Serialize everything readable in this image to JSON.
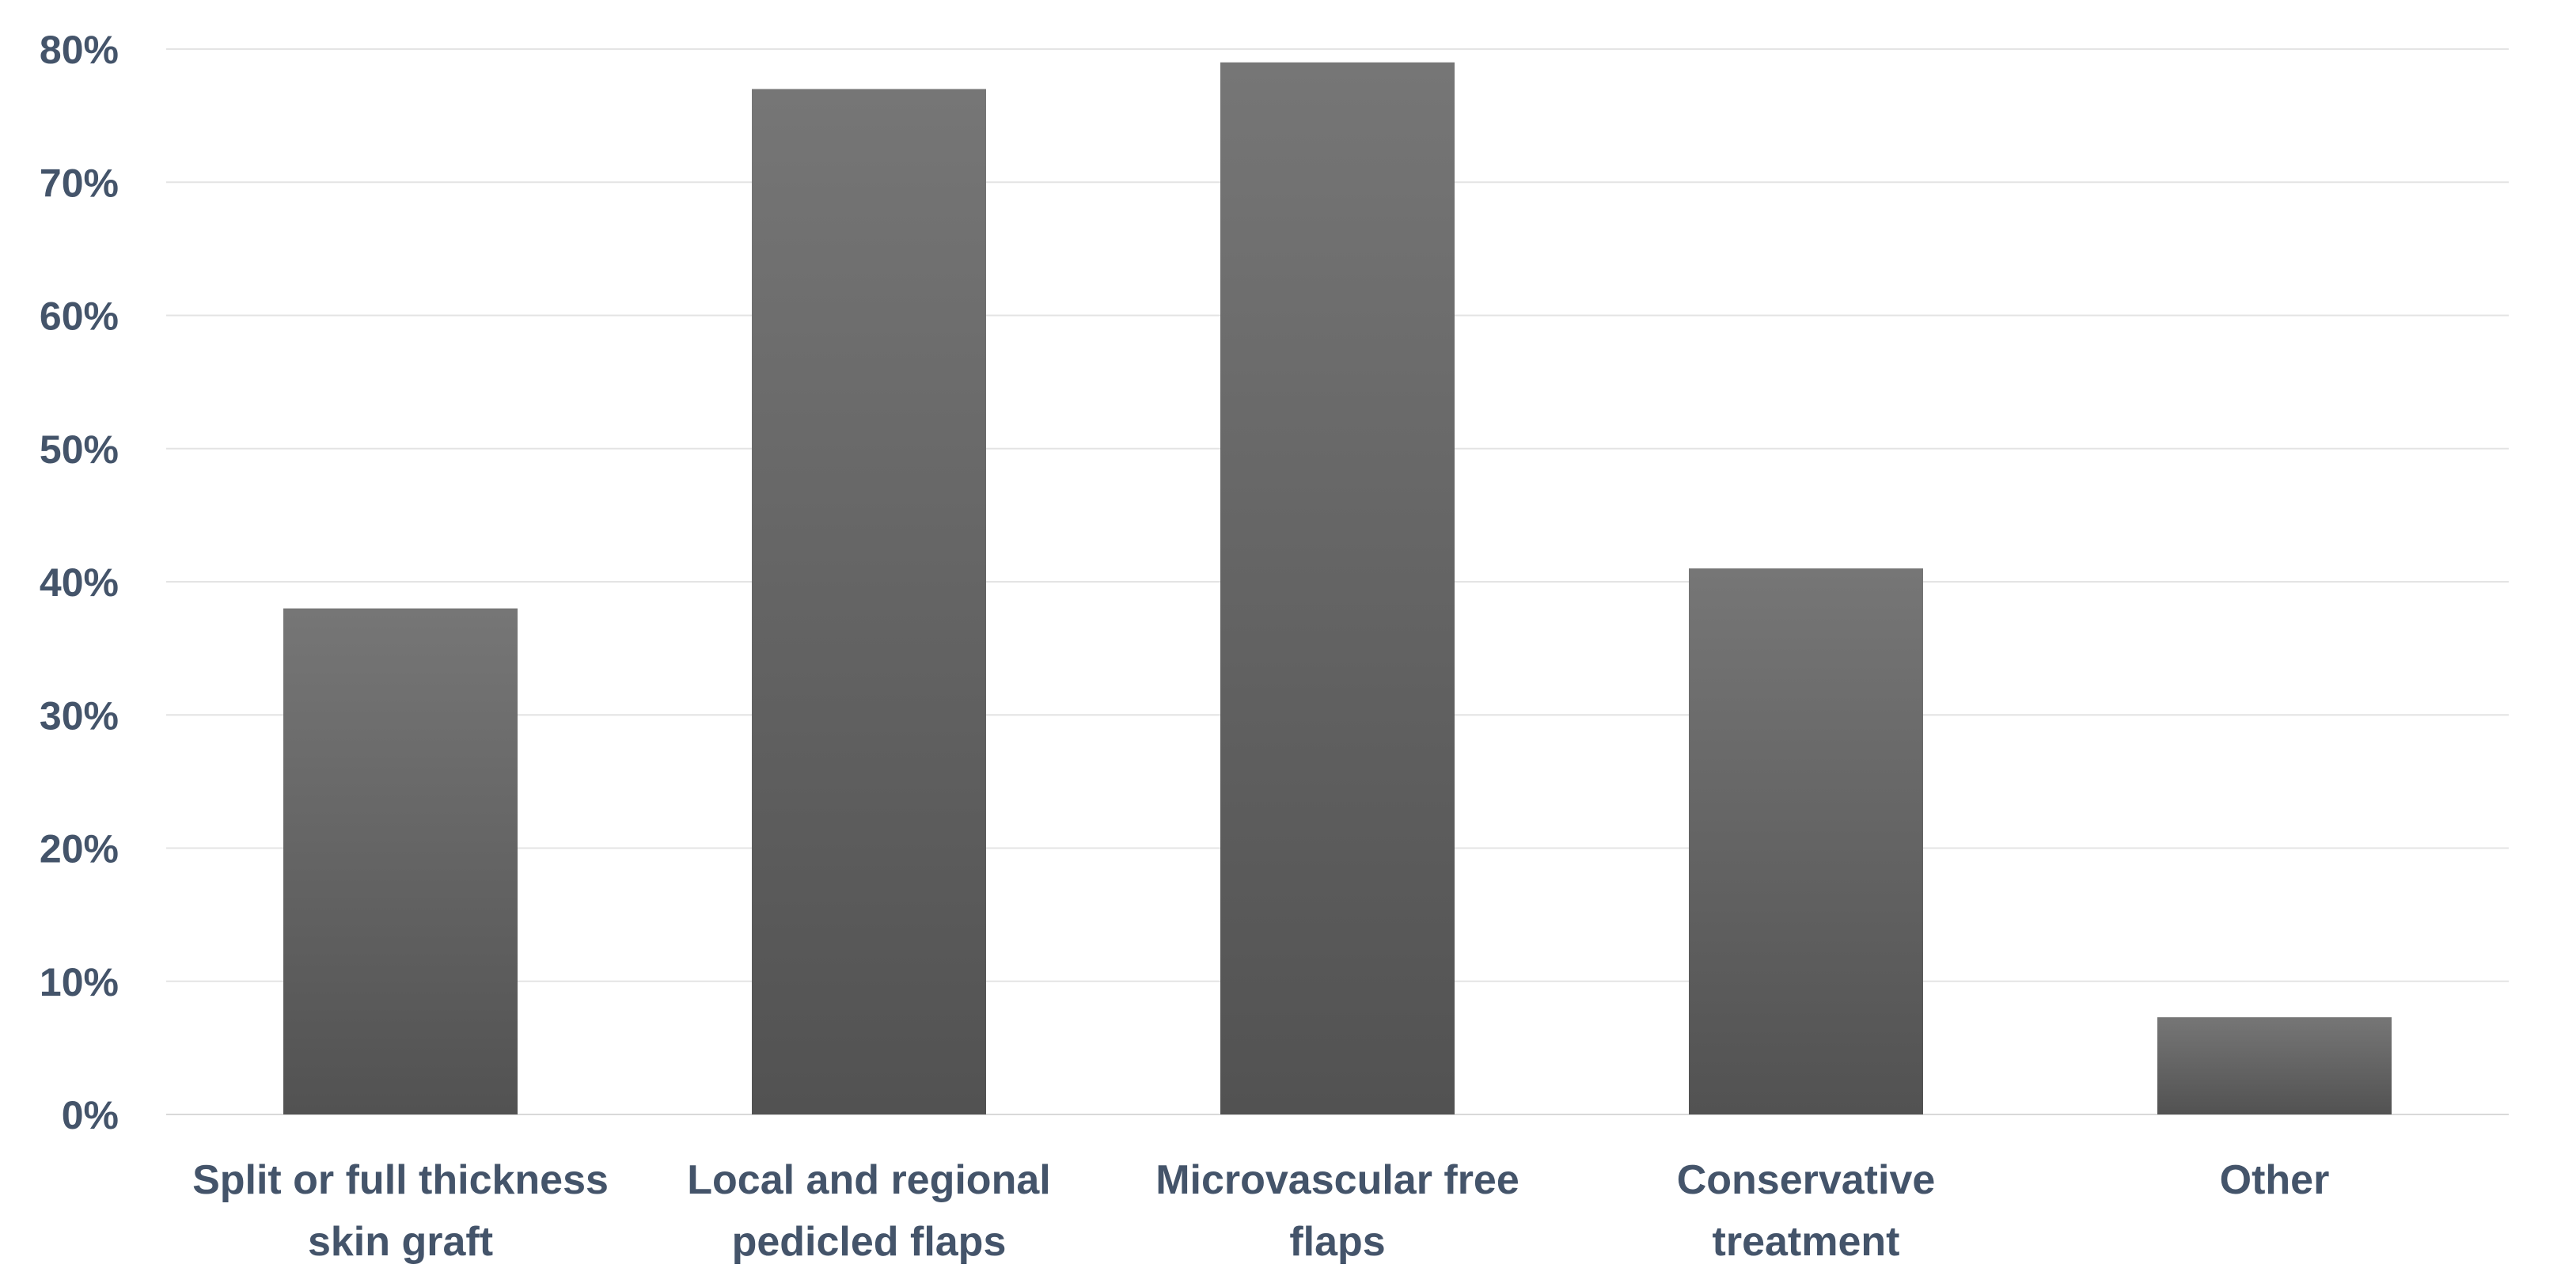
{
  "chart_data": {
    "type": "bar",
    "title": "",
    "xlabel": "",
    "ylabel": "",
    "categories": [
      [
        "Split or full thickness",
        "skin graft"
      ],
      [
        "Local and regional",
        "pedicled flaps"
      ],
      [
        "Microvascular free",
        "flaps"
      ],
      [
        "Conservative",
        "treatment"
      ],
      [
        "Other"
      ]
    ],
    "values": [
      38,
      77,
      79,
      41,
      7.3
    ],
    "ylim": [
      0,
      80
    ],
    "yticks": [
      0,
      10,
      20,
      30,
      40,
      50,
      60,
      70,
      80
    ],
    "ytick_format": "%",
    "grid": true,
    "legend": "none",
    "bar_color_top": "#767676",
    "bar_color_bottom": "#525252",
    "axis_text_color": "#44546a"
  }
}
